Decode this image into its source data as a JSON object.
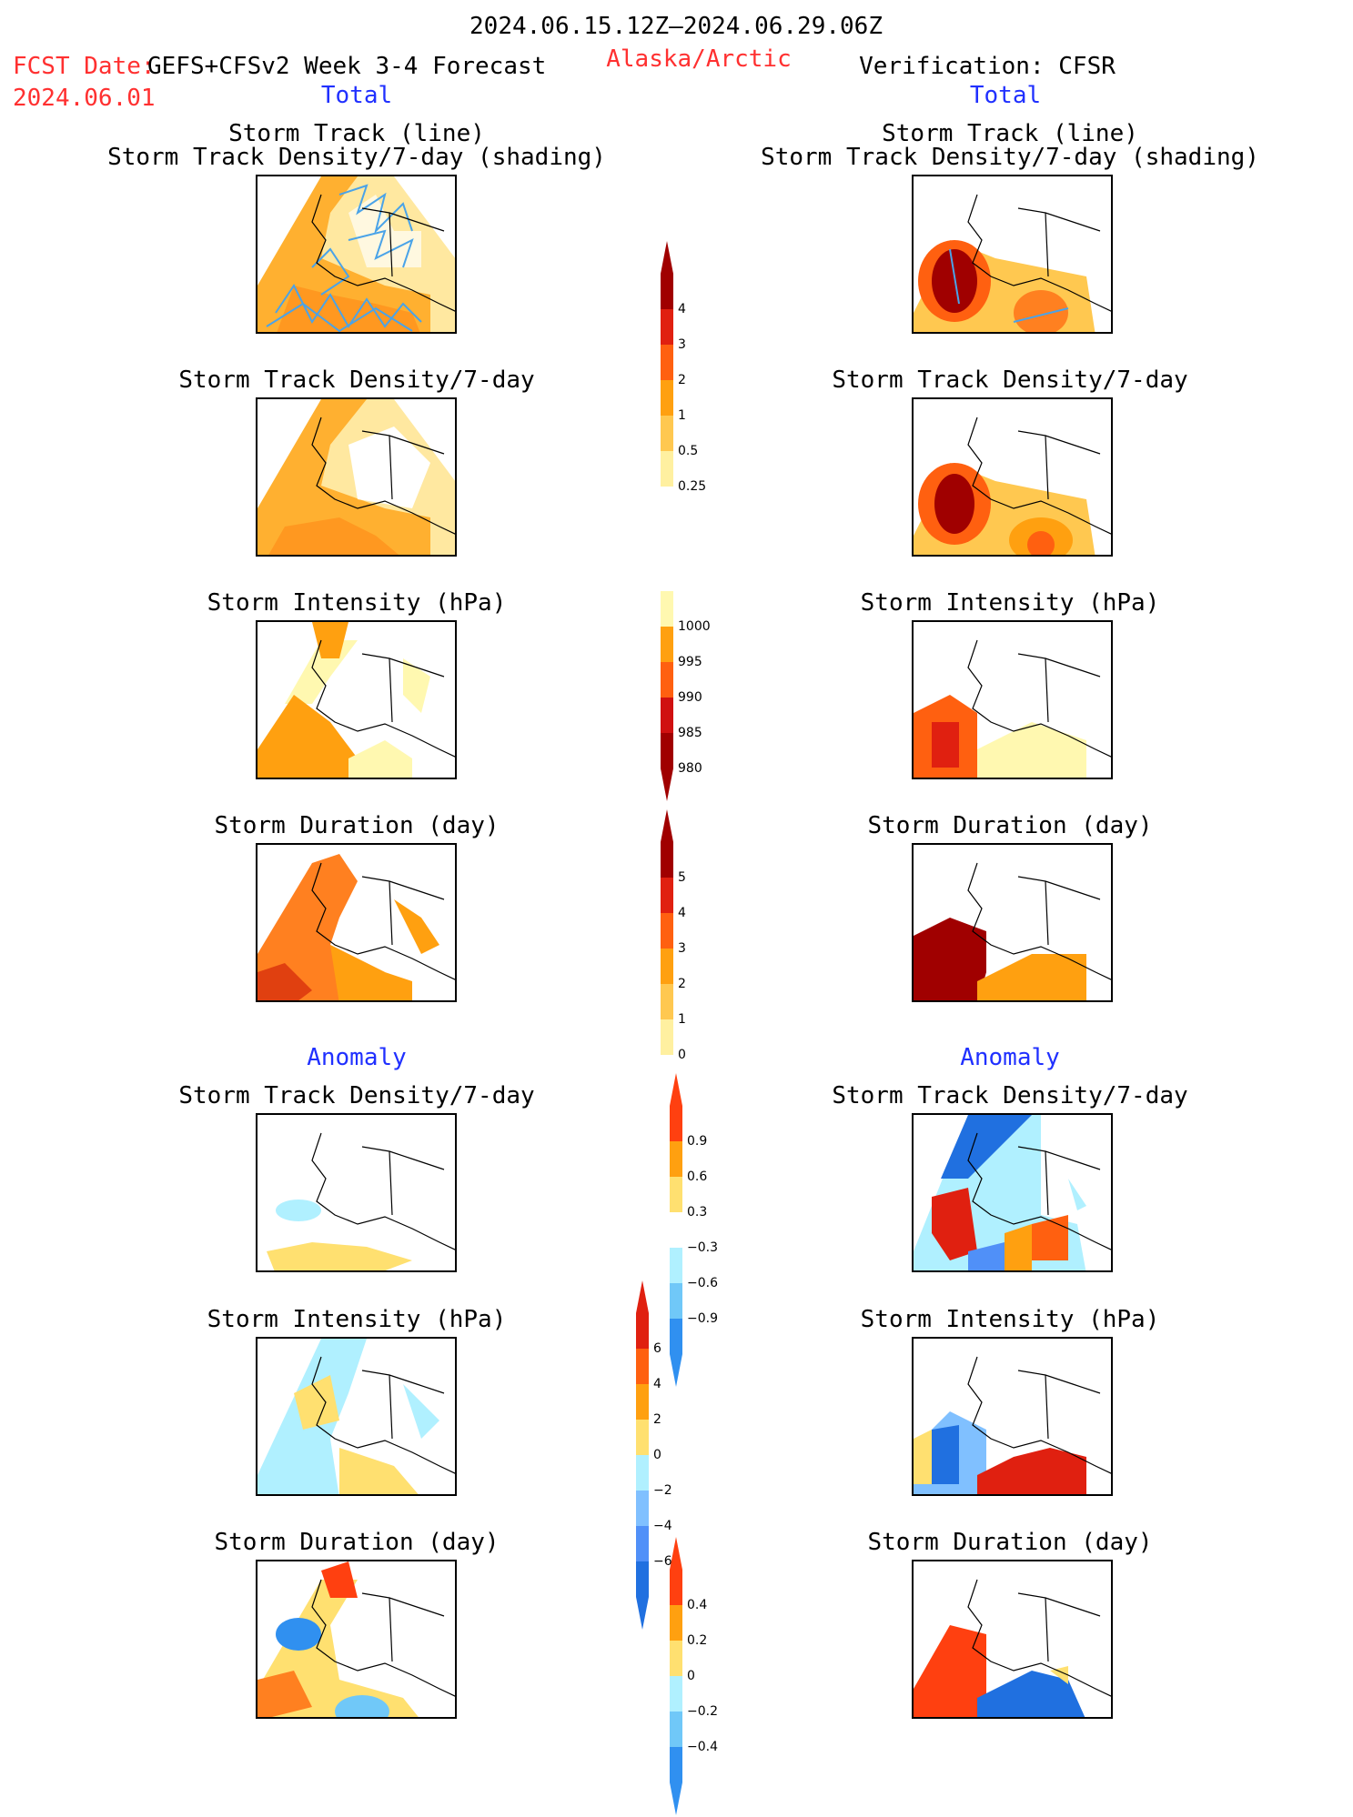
{
  "header": {
    "period": "2024.06.15.12Z–2024.06.29.06Z",
    "fcst_label": "FCST Date:",
    "fcst_model": "GEFS+CFSv2 Week 3-4 Forecast",
    "fcst_date": "2024.06.01",
    "region": "Alaska/Arctic",
    "verification": "Verification: CFSR",
    "left_total": "Total",
    "right_total": "Total",
    "left_anomaly": "Anomaly",
    "right_anomaly": "Anomaly"
  },
  "panel_titles": {
    "track_line": "Storm Track (line)",
    "track_density_shading": "Storm Track Density/7-day (shading)",
    "track_density": "Storm Track Density/7-day",
    "intensity": "Storm Intensity (hPa)",
    "duration": "Storm Duration (day)"
  },
  "colorbars": {
    "density": {
      "labels": [
        "4",
        "3",
        "2",
        "1",
        "0.5",
        "0.25"
      ],
      "colors": [
        "#a00000",
        "#e02010",
        "#ff6010",
        "#ffa010",
        "#ffc850",
        "#fff0a0"
      ]
    },
    "intensity": {
      "labels": [
        "1000",
        "995",
        "990",
        "985",
        "980"
      ],
      "colors": [
        "#fff8b0",
        "#ffa010",
        "#ff6010",
        "#d01010",
        "#a00000"
      ]
    },
    "duration": {
      "labels": [
        "5",
        "4",
        "3",
        "2",
        "1",
        "0"
      ],
      "colors": [
        "#a00000",
        "#e02010",
        "#ff6010",
        "#ffa010",
        "#ffc850",
        "#fff0a0"
      ]
    },
    "density_anom": {
      "labels": [
        "0.9",
        "0.6",
        "0.3",
        "−0.3",
        "−0.6",
        "−0.9"
      ],
      "colors": [
        "#ff4010",
        "#ffa010",
        "#ffe070",
        "#ffffff",
        "#b0f0ff",
        "#70c8f8",
        "#3090f0"
      ]
    },
    "intensity_anom": {
      "labels": [
        "6",
        "4",
        "2",
        "0",
        "−2",
        "−4",
        "−6"
      ],
      "colors": [
        "#e02010",
        "#ff6010",
        "#ffa010",
        "#ffe070",
        "#b0f0ff",
        "#80c0ff",
        "#5090f8",
        "#2070e0"
      ]
    },
    "duration_anom": {
      "labels": [
        "0.4",
        "0.2",
        "0",
        "−0.2",
        "−0.4"
      ],
      "colors": [
        "#ff4010",
        "#ffa010",
        "#ffe070",
        "#b0f0ff",
        "#70c8f8",
        "#3090f0"
      ]
    }
  },
  "colors": {
    "accent_red": "#ff3030",
    "accent_blue": "#2030ff",
    "track_line": "#4aa3e8"
  }
}
